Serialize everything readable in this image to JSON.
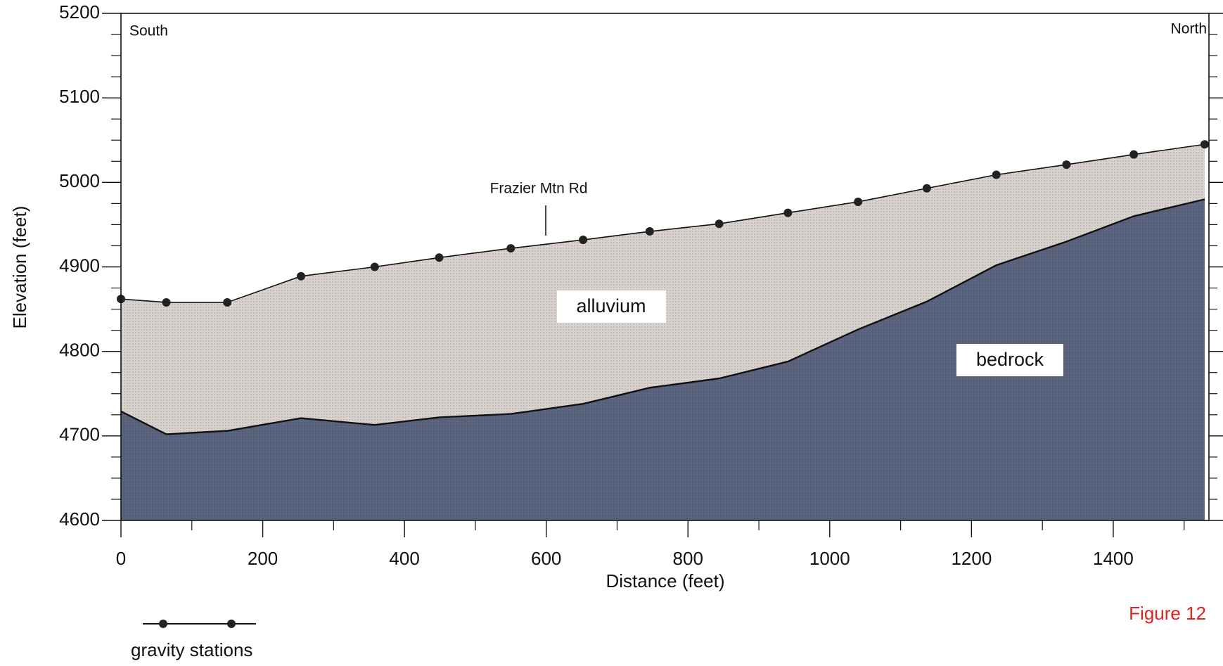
{
  "chart_data": {
    "type": "area",
    "x_label": "Distance (feet)",
    "y_label": "Elevation (feet)",
    "x": [
      0,
      64,
      150,
      254,
      358,
      449,
      550,
      652,
      746,
      844,
      941,
      1040,
      1137,
      1235,
      1334,
      1429,
      1529
    ],
    "series": [
      {
        "name": "gravity stations",
        "color": "#d9d2ce",
        "values": [
          4862,
          4858,
          4858,
          4889,
          4900,
          4911,
          4922,
          4932,
          4942,
          4951,
          4964,
          4977,
          4993,
          5009,
          5021,
          5033,
          5045
        ]
      },
      {
        "name": "bedrock",
        "color": "#5c6580",
        "values": [
          4729,
          4702,
          4706,
          4721,
          4713,
          4722,
          4726,
          4738,
          4757,
          4768,
          4788,
          4826,
          4859,
          4902,
          4930,
          4960,
          4980
        ]
      }
    ],
    "xlim": [
      0,
      1535
    ],
    "ylim": [
      4600,
      5200
    ],
    "xticks": [
      0,
      200,
      400,
      600,
      800,
      1000,
      1200,
      1400
    ],
    "yticks": [
      4600,
      4700,
      4800,
      4900,
      5000,
      5100,
      5200
    ],
    "xminor_ticks": [
      100,
      300,
      500,
      700,
      900,
      1100,
      1300,
      1500
    ],
    "yminor_ticks": [
      4625,
      4650,
      4675,
      4725,
      4750,
      4775,
      4825,
      4850,
      4875,
      4925,
      4950,
      4975,
      5025,
      5050,
      5075,
      5125,
      5150,
      5175
    ],
    "annotations": [
      "South",
      "North",
      "Frazier Mtn Rd",
      "alluvium"
    ],
    "figure_label": "Figure 12",
    "figure_label_color": "#e0201c"
  }
}
